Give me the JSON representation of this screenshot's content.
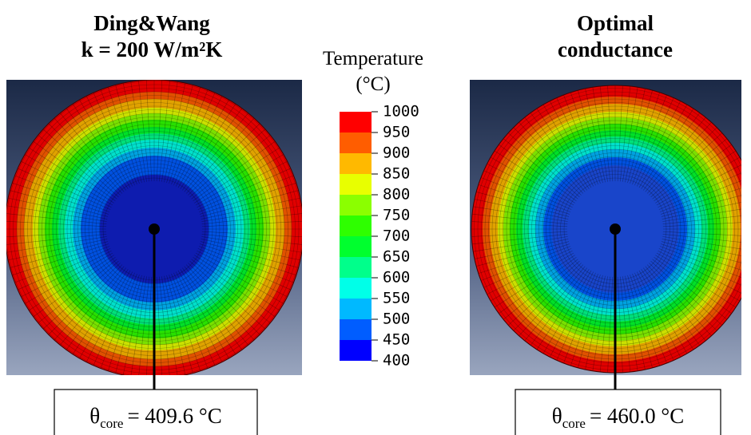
{
  "panels": [
    {
      "title": [
        "Ding&Wang",
        "k = 200 W/m²K"
      ],
      "annotation": {
        "symbol": "θ",
        "subscript": "core",
        "text": "= 409.6 °C"
      }
    },
    {
      "title": [
        "Optimal",
        "conductance"
      ],
      "annotation": {
        "symbol": "θ",
        "subscript": "core",
        "text": "= 460.0 °C"
      }
    }
  ],
  "legend": {
    "title": "Temperature",
    "unit": "(°C)",
    "ticks": [
      1000,
      950,
      900,
      850,
      800,
      750,
      700,
      650,
      600,
      550,
      500,
      450,
      400
    ],
    "colors": [
      "#ff0000",
      "#ff5d00",
      "#ffb900",
      "#e8ff00",
      "#8bff00",
      "#2eff00",
      "#00ff2e",
      "#00ff8b",
      "#00ffe8",
      "#00b9ff",
      "#005dff",
      "#0000ff"
    ]
  }
}
